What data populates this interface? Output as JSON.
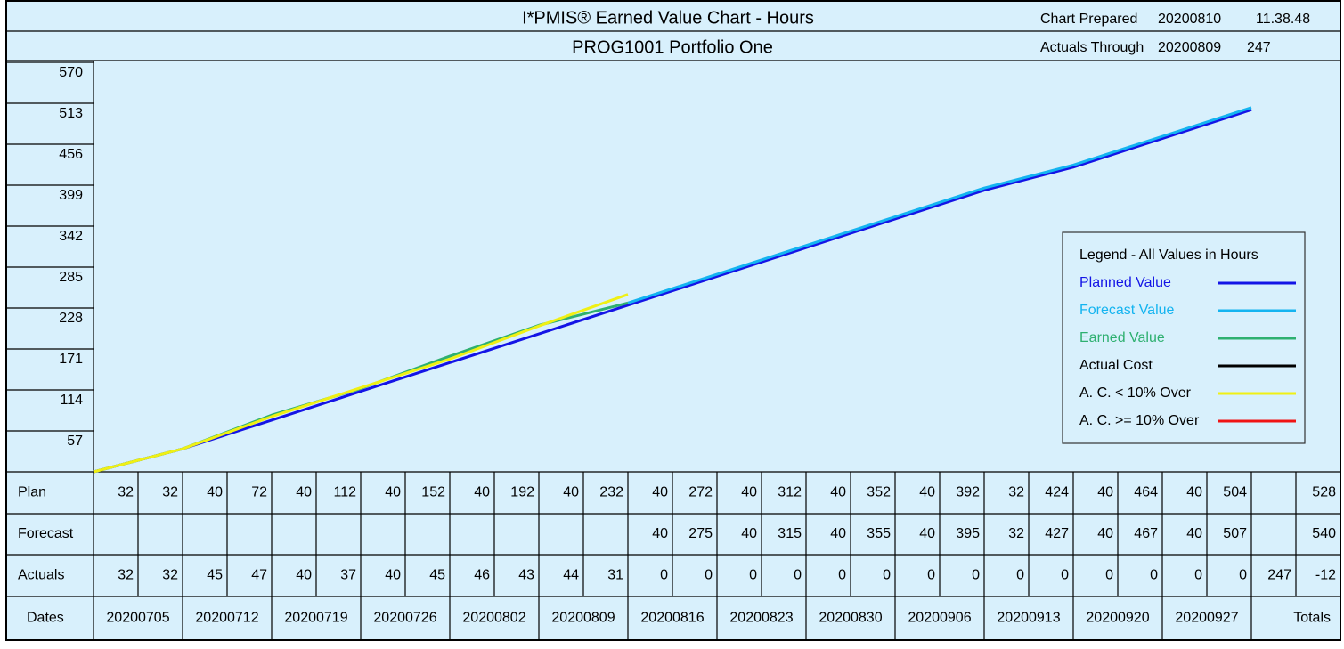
{
  "chart_data": {
    "type": "line",
    "title": "I*PMIS® Earned Value Chart - Hours",
    "subtitle": "PROG1001 Portfolio One",
    "header": {
      "prepared_label": "Chart Prepared",
      "prepared_date": "20200810",
      "prepared_time": "11.38.48",
      "actuals_label": "Actuals Through",
      "actuals_date": "20200809",
      "actuals_value": 247
    },
    "categories": [
      "20200705",
      "20200712",
      "20200719",
      "20200726",
      "20200802",
      "20200809",
      "20200816",
      "20200823",
      "20200830",
      "20200906",
      "20200913",
      "20200920",
      "20200927"
    ],
    "ylim": [
      0,
      570
    ],
    "yticks": [
      57,
      114,
      171,
      228,
      285,
      342,
      399,
      456,
      513,
      570
    ],
    "legend_title": "Legend - All Values in Hours",
    "series": [
      {
        "name": "Planned Value",
        "color": "#1414e6",
        "values": [
          32,
          72,
          112,
          152,
          192,
          232,
          272,
          312,
          352,
          392,
          424,
          464,
          504
        ]
      },
      {
        "name": "Forecast Value",
        "color": "#14b4f0",
        "values": [
          null,
          null,
          null,
          null,
          null,
          235,
          275,
          315,
          355,
          395,
          427,
          467,
          507
        ]
      },
      {
        "name": "Earned Value",
        "color": "#2eb070",
        "values": [
          32,
          79,
          116,
          161,
          204,
          235,
          null,
          null,
          null,
          null,
          null,
          null,
          null
        ]
      },
      {
        "name": "Actual Cost",
        "color": "#000000",
        "values": [
          null,
          null,
          null,
          null,
          null,
          null,
          null,
          null,
          null,
          null,
          null,
          null,
          null
        ]
      },
      {
        "name": "A. C. < 10% Over",
        "color": "#f0f014",
        "values": [
          32,
          77,
          117,
          157,
          203,
          247,
          null,
          null,
          null,
          null,
          null,
          null,
          null
        ]
      },
      {
        "name": "A. C. >= 10% Over",
        "color": "#f01414",
        "values": [
          null,
          null,
          null,
          null,
          null,
          null,
          null,
          null,
          null,
          null,
          null,
          null,
          null
        ]
      }
    ],
    "table": {
      "rows": [
        {
          "label": "Plan",
          "cells": [
            32,
            32,
            40,
            72,
            40,
            112,
            40,
            152,
            40,
            192,
            40,
            232,
            40,
            272,
            40,
            312,
            40,
            352,
            40,
            392,
            32,
            424,
            40,
            464,
            40,
            504,
            null,
            528
          ]
        },
        {
          "label": "Forecast",
          "cells": [
            null,
            null,
            null,
            null,
            null,
            null,
            null,
            null,
            null,
            null,
            null,
            null,
            40,
            275,
            40,
            315,
            40,
            355,
            40,
            395,
            32,
            427,
            40,
            467,
            40,
            507,
            null,
            540
          ]
        },
        {
          "label": "Actuals",
          "cells": [
            32,
            32,
            45,
            47,
            40,
            37,
            40,
            45,
            46,
            43,
            44,
            31,
            0,
            0,
            0,
            0,
            0,
            0,
            0,
            0,
            0,
            0,
            0,
            0,
            0,
            0,
            247,
            -12
          ]
        }
      ],
      "dates_label": "Dates",
      "totals_label": "Totals"
    }
  }
}
